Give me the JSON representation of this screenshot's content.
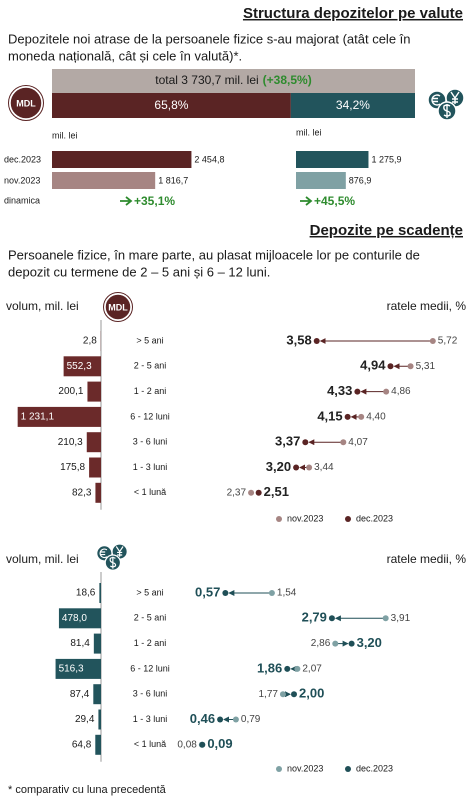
{
  "section1": {
    "title": "Structura depozitelor pe valute",
    "text": [
      "Depozitele noi atrase de la persoanele fizice s-au majorat (atât cele în",
      "moneda națională, cât și cele în valută)*."
    ],
    "badge": "MDL"
  },
  "section2": {
    "title": "Depozite pe scadențe",
    "text": [
      "Persoanele fizice, în mare parte, au plasat mijloacele lor pe conturile de",
      "depozit cu termene de 2 – 5 ani și 6 – 12 luni."
    ]
  },
  "footnote": "* comparativ cu luna precedentă",
  "chart_data": [
    {
      "type": "share-bar",
      "total_label": "total 3 730,7 mil. lei",
      "total_change": "(+38,5%)",
      "values": [
        65.8,
        34.2
      ],
      "value_labels": [
        "65,8%",
        "34,2%"
      ],
      "colors": [
        "#5a2424",
        "#22545c"
      ],
      "total_color": "#b3a9a5",
      "change_color": "#2e8b2e",
      "xlim": [
        0,
        100
      ]
    },
    {
      "type": "hbar",
      "unit": "mil. lei",
      "categories": [
        "dec.2023",
        "nov.2023"
      ],
      "values": [
        2454.8,
        1816.7
      ],
      "value_labels": [
        "2 454,8",
        "1 816,7"
      ],
      "colors": [
        "#5a2424",
        "#a68583"
      ],
      "xlim": [
        0,
        2500
      ],
      "change_label": "dinamica",
      "change": "+35,1%",
      "change_color": "#2e8b2e"
    },
    {
      "type": "hbar",
      "unit": "mil. lei",
      "values": [
        1275.9,
        876.9
      ],
      "value_labels": [
        "1 275,9",
        "876,9"
      ],
      "colors": [
        "#22545c",
        "#7fa1a4"
      ],
      "xlim": [
        0,
        2500
      ],
      "change": "+45,5%",
      "change_color": "#2e8b2e"
    },
    {
      "type": "maturity",
      "volume_label": "volum, mil. lei",
      "rates_label": "ratele medii, %",
      "categories": [
        "> 5 ani",
        "2 - 5 ani",
        "1 - 2 ani",
        "6 - 12 luni",
        "3 - 6 luni",
        "1 - 3 luni",
        "< 1 lună"
      ],
      "values": [
        2.8,
        552.3,
        200.1,
        1231.1,
        210.3,
        175.8,
        82.3
      ],
      "value_labels": [
        "2,8",
        "552,3",
        "200,1",
        "1 231,1",
        "210,3",
        "175,8",
        "82,3"
      ],
      "color": "#6b2a2a",
      "xlim": [
        0,
        1300
      ],
      "rates_xlim": [
        2,
        6
      ],
      "currency": "MDL",
      "series": [
        {
          "name": "nov.2023",
          "color": "#a68583",
          "values": [
            5.72,
            5.31,
            4.86,
            4.4,
            4.07,
            3.44,
            2.37
          ],
          "value_labels": [
            "5,72",
            "5,31",
            "4,86",
            "4,40",
            "4,07",
            "3,44",
            "2,37"
          ]
        },
        {
          "name": "dec.2023",
          "color": "#5a2424",
          "values": [
            3.58,
            4.94,
            4.33,
            4.15,
            3.37,
            3.2,
            2.51
          ],
          "value_labels": [
            "3,58",
            "4,94",
            "4,33",
            "4,15",
            "3,37",
            "3,20",
            "2,51"
          ]
        }
      ]
    },
    {
      "type": "maturity",
      "volume_label": "volum, mil. lei",
      "rates_label": "ratele medii, %",
      "categories": [
        "> 5 ani",
        "2 - 5 ani",
        "1 - 2 ani",
        "6 - 12 luni",
        "3 - 6 luni",
        "1 - 3 luni",
        "< 1 lună"
      ],
      "values": [
        18.6,
        478.0,
        81.4,
        516.3,
        87.4,
        29.4,
        64.8
      ],
      "value_labels": [
        "18,6",
        "478,0",
        "81,4",
        "516,3",
        "87,4",
        "29,4",
        "64,8"
      ],
      "color": "#22545c",
      "xlim": [
        0,
        1000
      ],
      "rates_xlim": [
        0,
        5
      ],
      "series": [
        {
          "name": "nov.2023",
          "color": "#7fa1a4",
          "values": [
            1.54,
            3.91,
            2.86,
            2.07,
            1.77,
            0.79,
            0.08
          ],
          "value_labels": [
            "1,54",
            "3,91",
            "2,86",
            "2,07",
            "1,77",
            "0,79",
            "0,08"
          ]
        },
        {
          "name": "dec.2023",
          "color": "#1f4f57",
          "values": [
            0.57,
            2.79,
            3.2,
            1.86,
            2.0,
            0.46,
            0.09
          ],
          "value_labels": [
            "0,57",
            "2,79",
            "3,20",
            "1,86",
            "2,00",
            "0,46",
            "0,09"
          ]
        }
      ]
    }
  ]
}
